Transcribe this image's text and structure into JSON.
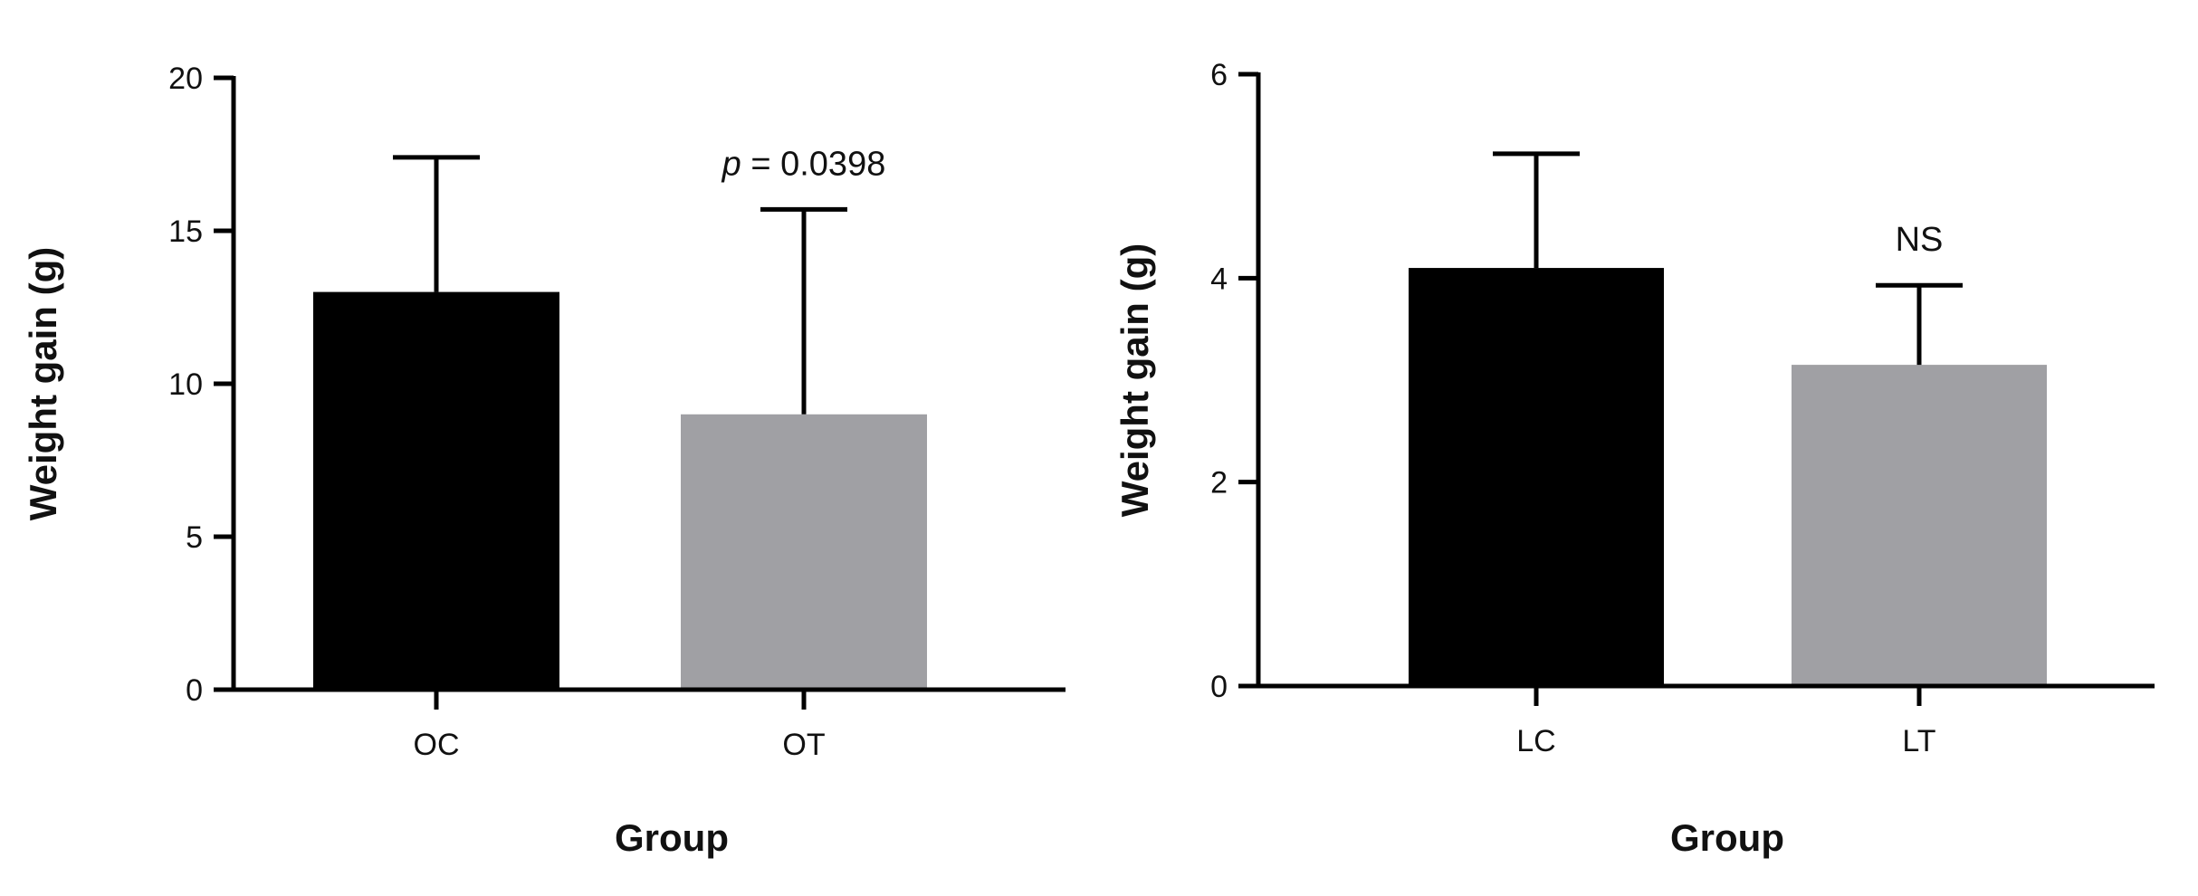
{
  "chart_data": [
    {
      "type": "bar",
      "categories": [
        "OC",
        "OT"
      ],
      "series": [
        {
          "values": [
            13.0,
            9.0
          ],
          "error_upper": [
            17.4,
            15.7
          ],
          "colors": [
            "#000000",
            "#a0a0a4"
          ]
        }
      ],
      "xlabel": "Group",
      "ylabel": "Weight gain (g)",
      "ylim": [
        0,
        20
      ],
      "yticks": [
        0,
        5,
        10,
        15,
        20
      ],
      "annotation": {
        "category": "OT",
        "italic": "p",
        "text": " = 0.0398"
      },
      "grid": false,
      "legend": "none"
    },
    {
      "type": "bar",
      "categories": [
        "LC",
        "LT"
      ],
      "series": [
        {
          "values": [
            4.1,
            3.15
          ],
          "error_upper": [
            5.22,
            3.93
          ],
          "colors": [
            "#000000",
            "#a0a0a4"
          ]
        }
      ],
      "xlabel": "Group",
      "ylabel": "Weight gain (g)",
      "ylim": [
        0,
        6
      ],
      "yticks": [
        0,
        2,
        4,
        6
      ],
      "annotation": {
        "category": "LT",
        "italic": "",
        "text": "NS"
      },
      "grid": false,
      "legend": "none"
    }
  ]
}
